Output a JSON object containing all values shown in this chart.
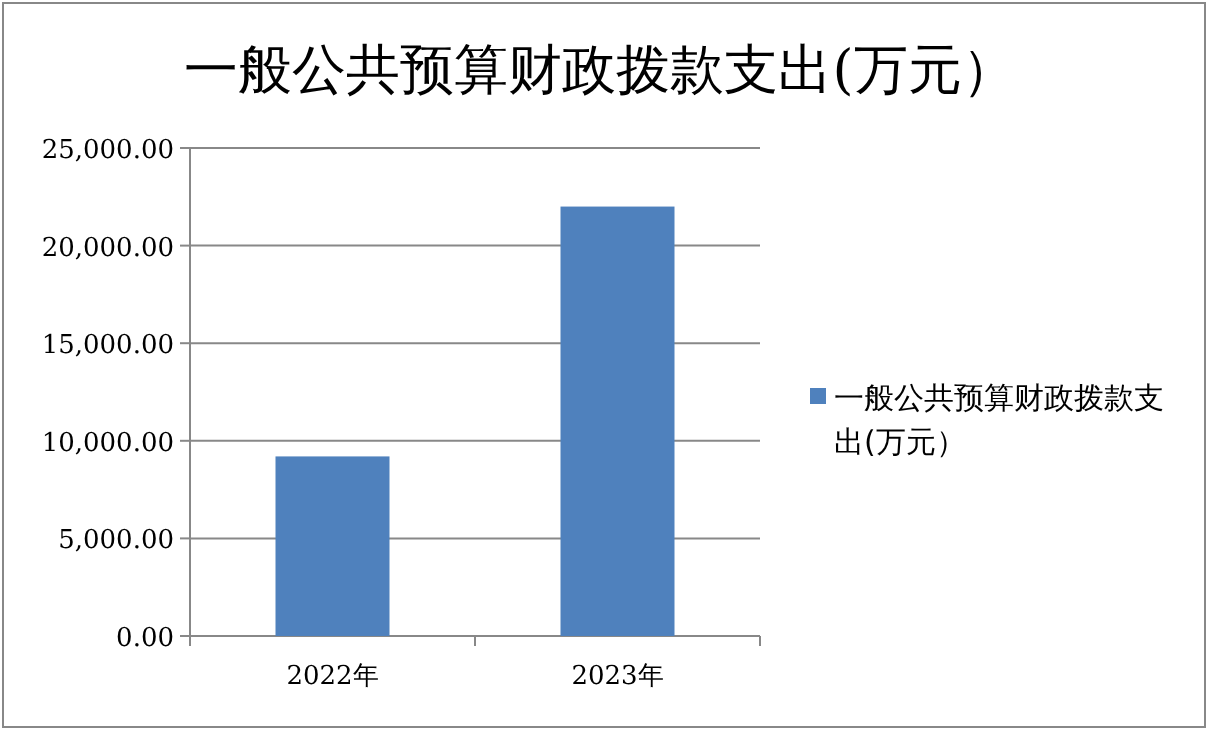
{
  "chart_data": {
    "type": "bar",
    "title": "一般公共预算财政拨款支出(万元）",
    "categories": [
      "2022年",
      "2023年"
    ],
    "series": [
      {
        "name": "一般公共预算财政拨款支出(万元）",
        "color": "#4f81bd",
        "values": [
          9200,
          22000
        ]
      }
    ],
    "ylim": [
      0,
      25000
    ],
    "yticks": [
      {
        "value": 0,
        "label": "0.00"
      },
      {
        "value": 5000,
        "label": "5,000.00"
      },
      {
        "value": 10000,
        "label": "10,000.00"
      },
      {
        "value": 15000,
        "label": "15,000.00"
      },
      {
        "value": 20000,
        "label": "20,000.00"
      },
      {
        "value": 25000,
        "label": "25,000.00"
      }
    ],
    "grid": "y",
    "legend": "right"
  }
}
